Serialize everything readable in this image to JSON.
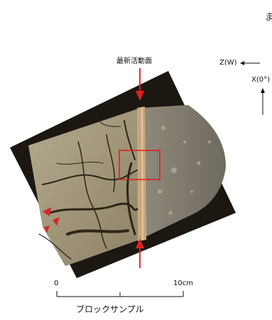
{
  "annotations": {
    "fault_surface_label": "最新活動面",
    "z_axis_label": "Z(W)",
    "x_axis_label": "X(0°)",
    "top_right_fragment": "ま"
  },
  "scale_bar": {
    "start_label": "0",
    "end_label": "10cm"
  },
  "caption": "ブロックサンプル",
  "colors": {
    "marker_red": "#e0201f",
    "rock_base": "#a59a7e",
    "vein_dark": "#2d2519",
    "fault_band": "#c8a77c"
  }
}
